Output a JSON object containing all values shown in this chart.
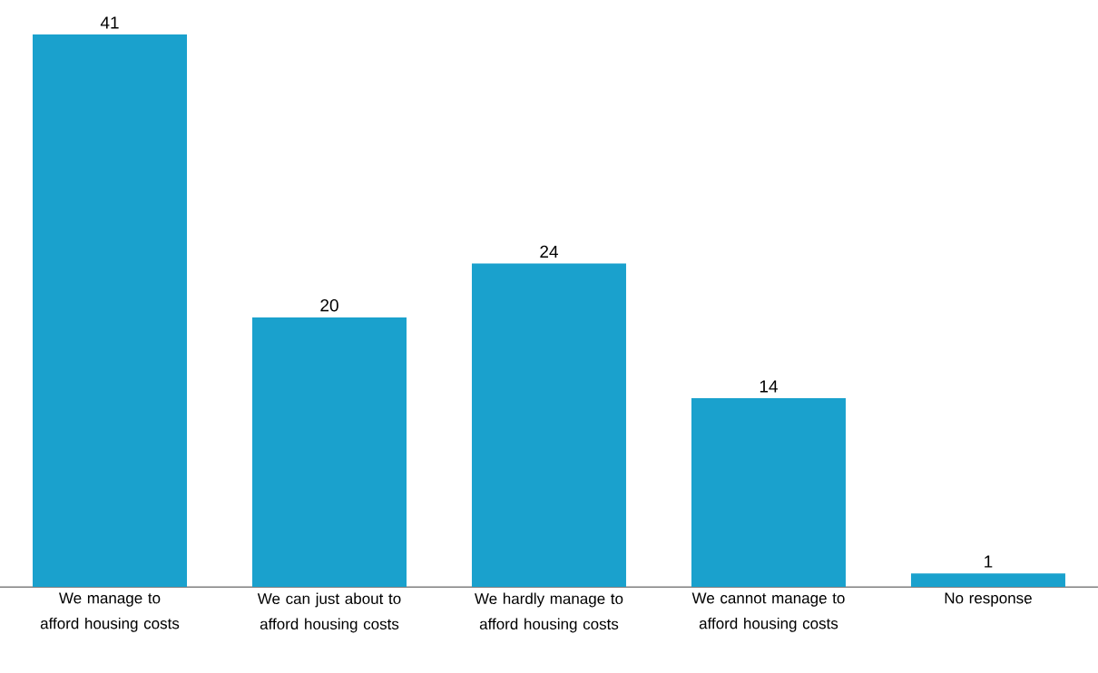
{
  "chart_data": {
    "type": "bar",
    "categories": [
      "We manage to afford housing costs",
      "We can just about to afford housing costs",
      "We hardly manage to afford housing costs",
      "We cannot manage to afford housing costs",
      "No response"
    ],
    "values": [
      41,
      20,
      24,
      14,
      1
    ],
    "color": "#1aa1cd",
    "data_labels": true
  }
}
